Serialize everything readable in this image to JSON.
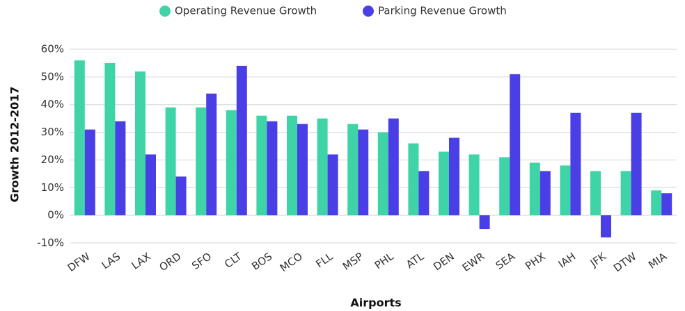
{
  "chart_data": {
    "type": "bar",
    "xlabel": "Airports",
    "ylabel": "Growth 2012-2017",
    "categories": [
      "DFW",
      "LAS",
      "LAX",
      "ORD",
      "SFO",
      "CLT",
      "BOS",
      "MCO",
      "FLL",
      "MSP",
      "PHL",
      "ATL",
      "DEN",
      "EWR",
      "SEA",
      "PHX",
      "IAH",
      "JFK",
      "DTW",
      "MIA"
    ],
    "series": [
      {
        "name": "Operating Revenue Growth",
        "color": "#3fd3a8",
        "values": [
          56,
          55,
          52,
          39,
          39,
          38,
          36,
          36,
          35,
          33,
          30,
          26,
          23,
          22,
          21,
          19,
          18,
          16,
          16,
          9
        ]
      },
      {
        "name": "Parking Revenue Growth",
        "color": "#4a3fe6",
        "values": [
          31,
          34,
          22,
          14,
          44,
          54,
          34,
          33,
          22,
          31,
          35,
          16,
          28,
          -5,
          51,
          16,
          37,
          -8,
          37,
          8
        ]
      }
    ],
    "ylim": [
      -10,
      60
    ],
    "yticks": [
      {
        "value": -10,
        "label": "-10%"
      },
      {
        "value": 0,
        "label": "0%"
      },
      {
        "value": 10,
        "label": "10%"
      },
      {
        "value": 20,
        "label": "20%"
      },
      {
        "value": 30,
        "label": "30%"
      },
      {
        "value": 40,
        "label": "40%"
      },
      {
        "value": 50,
        "label": "50%"
      },
      {
        "value": 60,
        "label": "60%"
      }
    ],
    "grid": true,
    "legend": "top"
  }
}
